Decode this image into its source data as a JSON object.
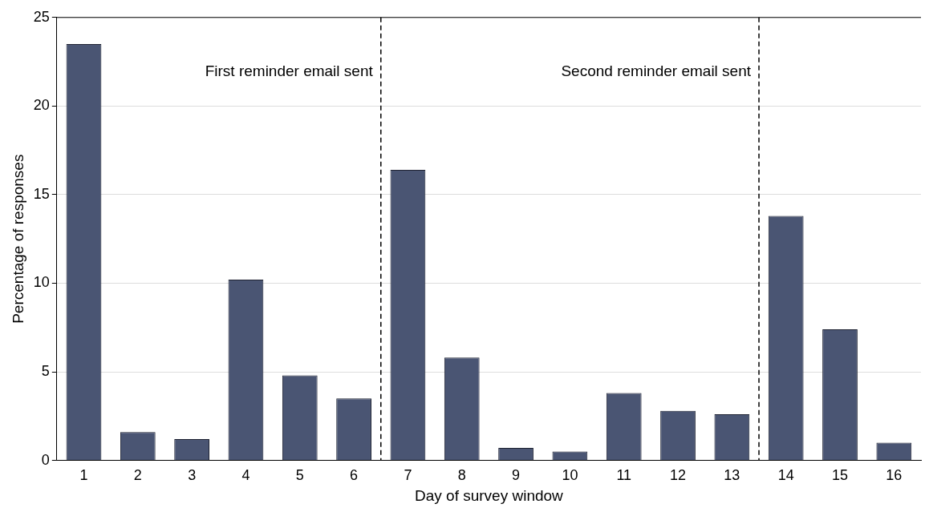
{
  "chart_data": {
    "type": "bar",
    "xlabel": "Day of survey window",
    "ylabel": "Percentage of responses",
    "x": [
      1,
      2,
      3,
      4,
      5,
      6,
      7,
      8,
      9,
      10,
      11,
      12,
      13,
      14,
      15,
      16
    ],
    "values": [
      23.5,
      1.6,
      1.2,
      10.2,
      4.8,
      3.5,
      16.4,
      5.8,
      0.7,
      0.5,
      3.8,
      2.8,
      2.6,
      13.8,
      7.4,
      1.0
    ],
    "color": "#4a5573",
    "xlim": [
      0.5,
      16.5
    ],
    "xticks": [
      1,
      2,
      3,
      4,
      5,
      6,
      7,
      8,
      9,
      10,
      11,
      12,
      13,
      14,
      15,
      16
    ],
    "ylim": [
      0,
      25
    ],
    "yticks": [
      0,
      5,
      10,
      15,
      20,
      25
    ],
    "grid": "y",
    "legend": false,
    "ref_lines": [
      {
        "axis": "x",
        "value": 6.5,
        "label": "First reminder email sent",
        "line_style": "dashed",
        "color": "#000000"
      },
      {
        "axis": "x",
        "value": 13.5,
        "label": "Second reminder email sent",
        "line_style": "dashed",
        "color": "#000000"
      }
    ]
  }
}
